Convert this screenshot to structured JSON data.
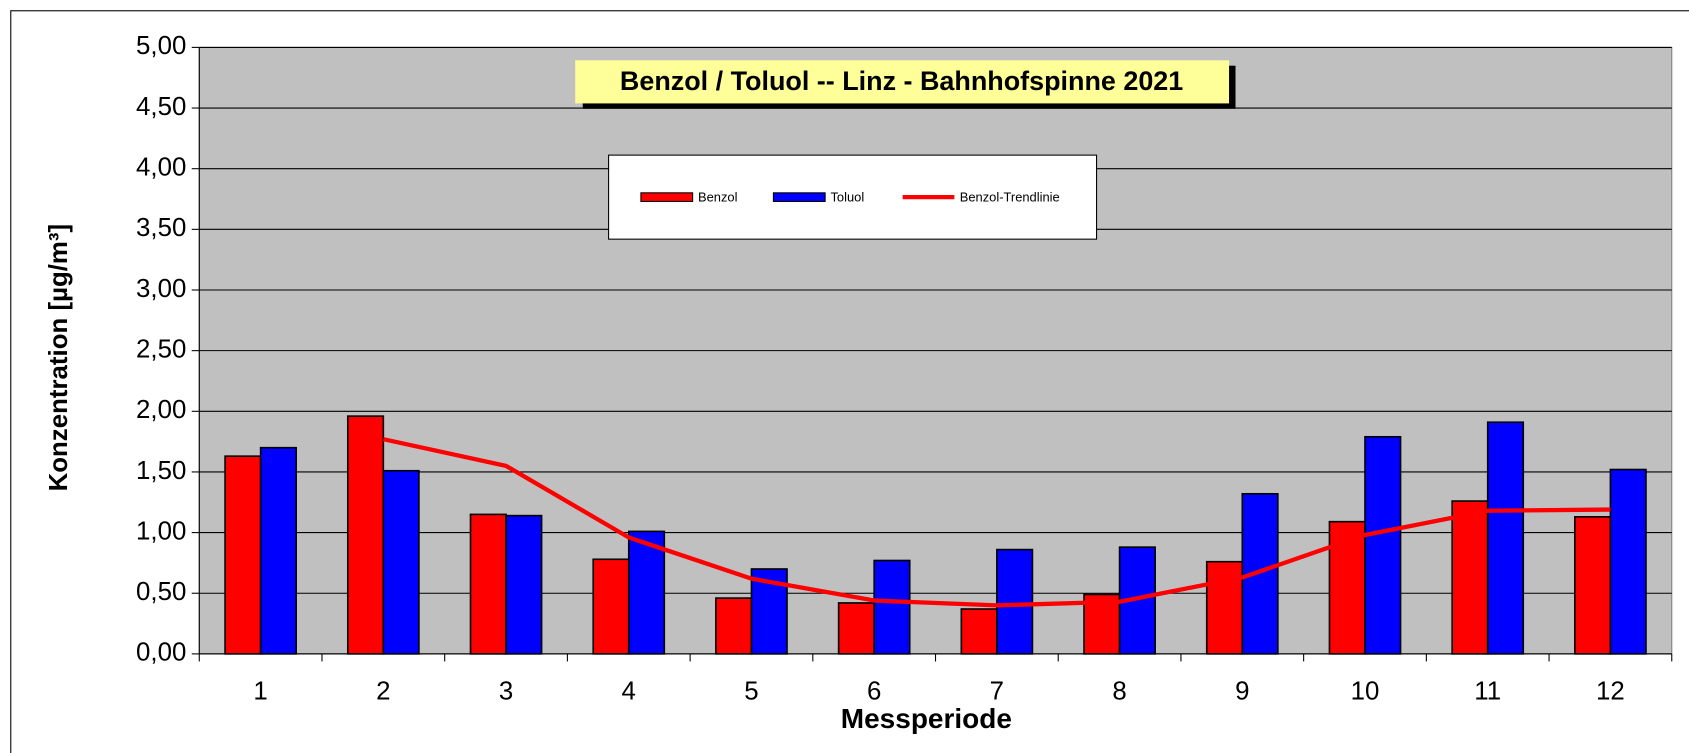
{
  "chart_data": {
    "type": "bar",
    "title": "Benzol / Toluol -- Linz - Bahnhofspinne 2021",
    "xlabel": "Messperiode",
    "ylabel": "Konzentration [µg/m³]",
    "categories": [
      "1",
      "2",
      "3",
      "4",
      "5",
      "6",
      "7",
      "8",
      "9",
      "10",
      "11",
      "12"
    ],
    "series": [
      {
        "name": "Benzol",
        "type": "bar",
        "color": "#ff0000",
        "values": [
          1.63,
          1.96,
          1.15,
          0.78,
          0.46,
          0.42,
          0.37,
          0.49,
          0.76,
          1.09,
          1.26,
          1.13
        ]
      },
      {
        "name": "Toluol",
        "type": "bar",
        "color": "#0000ff",
        "values": [
          1.7,
          1.51,
          1.14,
          1.01,
          0.7,
          0.77,
          0.86,
          0.88,
          1.32,
          1.79,
          1.91,
          1.52
        ]
      },
      {
        "name": "Benzol-Trendlinie",
        "type": "line",
        "color": "#ff0000",
        "values": [
          null,
          1.77,
          1.55,
          0.96,
          0.62,
          0.44,
          0.4,
          0.43,
          0.63,
          0.98,
          1.18,
          1.19
        ]
      }
    ],
    "ylim": [
      0,
      5
    ],
    "yticks": [
      {
        "value": 0,
        "label": "0,00"
      },
      {
        "value": 0.5,
        "label": "0,50"
      },
      {
        "value": 1,
        "label": "1,00"
      },
      {
        "value": 1.5,
        "label": "1,50"
      },
      {
        "value": 2,
        "label": "2,00"
      },
      {
        "value": 2.5,
        "label": "2,50"
      },
      {
        "value": 3,
        "label": "3,00"
      },
      {
        "value": 3.5,
        "label": "3,50"
      },
      {
        "value": 4,
        "label": "4,00"
      },
      {
        "value": 4.5,
        "label": "4,50"
      },
      {
        "value": 5,
        "label": "5,00"
      }
    ],
    "grid": true,
    "plot_background": "#c0c0c0"
  }
}
